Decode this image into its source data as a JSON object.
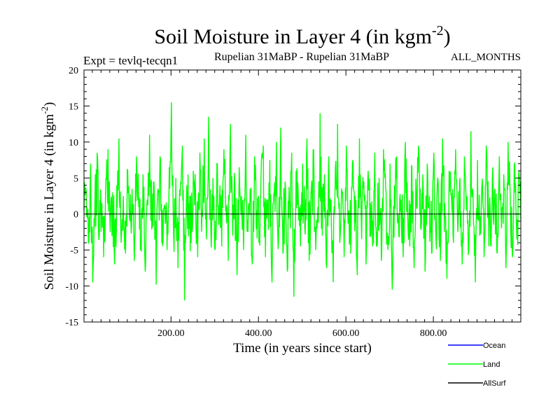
{
  "chart_data": {
    "type": "line",
    "title": "Soil Moisture in Layer 4 (in kgm",
    "title_sup": "-2",
    "title_close": ")",
    "subtitle_left": "Expt = tevlq-tecqn1",
    "subtitle_center": "Rupelian  31MaBP - Rupelian  31MaBP",
    "subtitle_right": "ALL_MONTHS",
    "xlabel": "Time (in years since start)",
    "ylabel": "Soil Moisture in Layer 4 (in kgm",
    "ylabel_sup": "-2",
    "ylabel_close": ")",
    "xlim": [
      1,
      1000
    ],
    "ylim": [
      -15,
      20
    ],
    "x_ticks": [
      200,
      400,
      600,
      800
    ],
    "x_tick_labels": [
      "200.00",
      "400.00",
      "600.00",
      "800.00"
    ],
    "y_ticks": [
      -15,
      -10,
      -5,
      0,
      5,
      10,
      15,
      20
    ],
    "y_tick_labels": [
      "-15",
      "-10",
      "-5",
      "0",
      "5",
      "10",
      "15",
      "20"
    ],
    "zero_line": true,
    "legend_position": "bottom-right",
    "series": [
      {
        "name": "Ocean",
        "color": "#0000ff",
        "values": []
      },
      {
        "name": "Land",
        "color": "#00ff00",
        "x_start": 1,
        "x_step": 5,
        "values": [
          0.5,
          3.2,
          -4.1,
          7.0,
          -9.5,
          2.0,
          8.5,
          -3.0,
          1.5,
          -6.0,
          5.0,
          9.0,
          -2.5,
          3.0,
          -7.0,
          4.0,
          10.5,
          -4.0,
          2.5,
          -5.5,
          6.0,
          -1.0,
          3.5,
          -6.5,
          8.0,
          1.0,
          -3.5,
          5.5,
          -8.0,
          2.0,
          11.0,
          -2.0,
          4.5,
          -9.8,
          3.0,
          7.5,
          -4.5,
          1.0,
          -5.0,
          6.5,
          15.5,
          -3.0,
          5.0,
          -7.5,
          2.5,
          9.5,
          -12.0,
          4.0,
          1.5,
          -4.0,
          6.0,
          3.5,
          -6.0,
          8.5,
          0.5,
          10.5,
          -3.5,
          13.5,
          -2.0,
          5.0,
          -5.0,
          7.0,
          2.0,
          -4.5,
          9.0,
          1.0,
          -6.5,
          12.5,
          -3.0,
          4.0,
          -8.5,
          6.5,
          2.5,
          -5.0,
          11.0,
          -2.5,
          3.5,
          -7.0,
          8.0,
          0.5,
          -4.0,
          5.5,
          9.5,
          -6.0,
          2.0,
          7.5,
          -9.5,
          3.0,
          10.0,
          -3.5,
          12.0,
          -5.5,
          4.5,
          -8.0,
          1.5,
          8.5,
          -11.5,
          6.0,
          2.5,
          -4.5,
          7.0,
          -2.0,
          10.5,
          -6.5,
          3.5,
          9.0,
          -5.0,
          1.0,
          14.0,
          -3.0,
          5.5,
          -7.5,
          8.0,
          2.0,
          -9.5,
          6.5,
          12.5,
          -4.0,
          3.0,
          -6.0,
          9.5,
          0.5,
          -5.5,
          7.5,
          2.5,
          -8.5,
          10.5,
          -3.5,
          4.5,
          -7.0,
          6.0,
          1.5,
          -4.5,
          8.5,
          -2.5,
          5.0,
          -6.5,
          9.0,
          3.5,
          -5.0,
          7.0,
          -10.5,
          4.0,
          8.0,
          -3.0,
          2.0,
          -6.0,
          10.0,
          1.0,
          -4.5,
          6.5,
          -7.5,
          3.0,
          9.5,
          -2.0,
          5.5,
          -8.0,
          7.0,
          2.5,
          -5.5,
          8.5,
          -3.5,
          4.5,
          -6.5,
          10.5,
          1.5,
          -9.0,
          6.0,
          3.0,
          -4.0,
          9.0,
          -2.5,
          5.0,
          -7.0,
          8.0,
          0.5,
          -5.0,
          11.5,
          2.0,
          -9.5,
          7.5,
          -3.0,
          4.0,
          -6.0,
          9.5,
          1.0,
          -4.5,
          6.5,
          3.5,
          -5.5,
          8.0,
          -2.0,
          5.5,
          -7.5,
          10.0,
          2.5,
          -6.0,
          7.0,
          -3.5,
          6.0
        ]
      },
      {
        "name": "AllSurf",
        "color": "#000000",
        "values": []
      }
    ]
  }
}
